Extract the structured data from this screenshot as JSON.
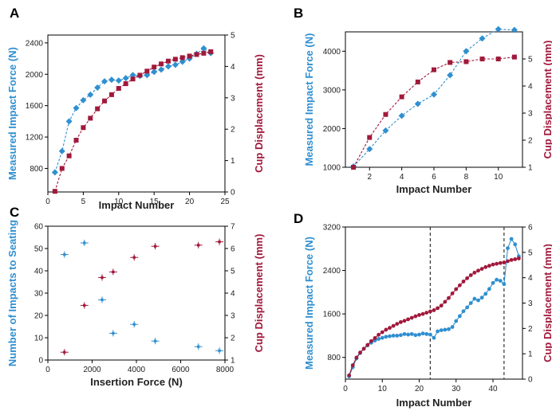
{
  "colors": {
    "blue": "#2f8fd0",
    "red": "#a0193b",
    "axis": "#000000"
  },
  "chart_data": [
    {
      "panel": "A",
      "type": "line",
      "xlabel": "Impact Number",
      "ylabel_left": "Measured Impact Force (N)",
      "ylabel_right": "Cup Displacement (mm)",
      "xlim": [
        0,
        25
      ],
      "ylim_left": [
        500,
        2500
      ],
      "ylim_right": [
        0,
        5
      ],
      "xticks": [
        0,
        5,
        10,
        15,
        20,
        25
      ],
      "yticks_left": [
        800,
        1200,
        1600,
        2000,
        2400
      ],
      "yticks_right": [
        0,
        1,
        2,
        3,
        4,
        5
      ],
      "series": [
        {
          "axis": "left",
          "marker": "diamond",
          "color": "blue",
          "x": [
            1,
            2,
            3,
            4,
            5,
            6,
            7,
            8,
            9,
            10,
            11,
            12,
            13,
            14,
            15,
            16,
            17,
            18,
            19,
            20,
            21,
            22,
            23
          ],
          "values": [
            750,
            1020,
            1400,
            1570,
            1670,
            1740,
            1830,
            1910,
            1930,
            1920,
            1950,
            1990,
            1980,
            1990,
            2030,
            2060,
            2100,
            2120,
            2160,
            2200,
            2260,
            2330,
            2270
          ]
        },
        {
          "axis": "right",
          "marker": "square",
          "color": "red",
          "x": [
            1,
            2,
            3,
            4,
            5,
            6,
            7,
            8,
            9,
            10,
            11,
            12,
            13,
            14,
            15,
            16,
            17,
            18,
            19,
            20,
            21,
            22,
            23
          ],
          "values": [
            0.02,
            0.75,
            1.15,
            1.65,
            2.05,
            2.35,
            2.65,
            2.9,
            3.1,
            3.3,
            3.45,
            3.6,
            3.72,
            3.85,
            3.98,
            4.08,
            4.17,
            4.23,
            4.28,
            4.33,
            4.38,
            4.42,
            4.47
          ]
        }
      ]
    },
    {
      "panel": "B",
      "type": "line",
      "xlabel": "Impact Number",
      "ylabel_left": "Measured Impact Force (N)",
      "ylabel_right": "Cup Displacement (mm)",
      "xlim": [
        0.5,
        11.5
      ],
      "ylim_left": [
        1000,
        4500
      ],
      "ylim_right": [
        1,
        6
      ],
      "xticks": [
        2,
        4,
        6,
        8,
        10
      ],
      "yticks_left": [
        1000,
        2000,
        3000,
        4000
      ],
      "yticks_right": [
        1,
        2,
        3,
        4,
        5
      ],
      "series": [
        {
          "axis": "left",
          "marker": "diamond",
          "color": "blue",
          "x": [
            1,
            2,
            3,
            4,
            5,
            6,
            7,
            8,
            9,
            10,
            11
          ],
          "values": [
            1020,
            1470,
            1950,
            2330,
            2640,
            2880,
            3380,
            4000,
            4330,
            4570,
            4550
          ]
        },
        {
          "axis": "right",
          "marker": "square",
          "color": "red",
          "x": [
            1,
            2,
            3,
            4,
            5,
            6,
            7,
            8,
            9,
            10,
            11
          ],
          "values": [
            1.0,
            2.1,
            2.95,
            3.6,
            4.15,
            4.6,
            4.87,
            4.9,
            5.0,
            5.0,
            5.07
          ]
        }
      ]
    },
    {
      "panel": "C",
      "type": "scatter",
      "xlabel": "Insertion Force (N)",
      "ylabel_left": "Number of Impacts to Seating",
      "ylabel_right": "Cup Displacement (mm)",
      "xlim": [
        0,
        8000
      ],
      "ylim_left": [
        0,
        60
      ],
      "ylim_right": [
        1,
        7
      ],
      "xticks": [
        0,
        2000,
        4000,
        6000,
        8000
      ],
      "yticks_left": [
        0,
        10,
        20,
        30,
        40,
        50,
        60
      ],
      "yticks_right": [
        1,
        2,
        3,
        4,
        5,
        6,
        7
      ],
      "series": [
        {
          "axis": "left",
          "marker": "square",
          "color": "blue",
          "x": [
            750,
            1650,
            2450,
            2950,
            3900,
            4850,
            6800,
            7750
          ],
          "values": [
            47.3,
            52.5,
            27.0,
            12.0,
            16.0,
            8.5,
            6.0,
            4.2
          ]
        },
        {
          "axis": "right",
          "marker": "square",
          "color": "red",
          "x": [
            750,
            1650,
            2450,
            2950,
            3900,
            4850,
            6800,
            7750
          ],
          "values": [
            1.35,
            3.45,
            4.7,
            4.95,
            5.6,
            6.1,
            6.15,
            6.3
          ]
        }
      ]
    },
    {
      "panel": "D",
      "type": "line",
      "xlabel": "Impact Number",
      "ylabel_left": "Measured Impact Force (N)",
      "ylabel_right": "Cup Displacement (mm)",
      "xlim": [
        0,
        48
      ],
      "ylim_left": [
        400,
        3200
      ],
      "ylim_right": [
        0,
        6
      ],
      "xticks": [
        0,
        10,
        20,
        30,
        40
      ],
      "yticks_left": [
        800,
        1600,
        2400,
        3200
      ],
      "yticks_right": [
        0,
        1,
        2,
        3,
        4,
        5,
        6
      ],
      "vlines": [
        23,
        43
      ],
      "series": [
        {
          "axis": "left",
          "marker": "circle",
          "color": "blue",
          "x": [
            1,
            2,
            3,
            4,
            5,
            6,
            7,
            8,
            9,
            10,
            11,
            12,
            13,
            14,
            15,
            16,
            17,
            18,
            19,
            20,
            21,
            22,
            23,
            24,
            25,
            26,
            27,
            28,
            29,
            30,
            31,
            32,
            33,
            34,
            35,
            36,
            37,
            38,
            39,
            40,
            41,
            42,
            43,
            44,
            45,
            46,
            47
          ],
          "values": [
            450,
            620,
            780,
            880,
            960,
            1020,
            1070,
            1110,
            1140,
            1160,
            1180,
            1190,
            1200,
            1200,
            1210,
            1230,
            1220,
            1230,
            1210,
            1220,
            1240,
            1230,
            1220,
            1160,
            1280,
            1300,
            1310,
            1320,
            1360,
            1470,
            1560,
            1650,
            1720,
            1800,
            1880,
            1850,
            1900,
            1970,
            2060,
            2170,
            2230,
            2210,
            2150,
            2810,
            2980,
            2880,
            2660
          ]
        },
        {
          "axis": "right",
          "marker": "circle",
          "color": "red",
          "x": [
            1,
            2,
            3,
            4,
            5,
            6,
            7,
            8,
            9,
            10,
            11,
            12,
            13,
            14,
            15,
            16,
            17,
            18,
            19,
            20,
            21,
            22,
            23,
            24,
            25,
            26,
            27,
            28,
            29,
            30,
            31,
            32,
            33,
            34,
            35,
            36,
            37,
            38,
            39,
            40,
            41,
            42,
            43,
            44,
            45,
            46,
            47
          ],
          "values": [
            0.15,
            0.55,
            0.85,
            1.05,
            1.2,
            1.35,
            1.5,
            1.62,
            1.75,
            1.85,
            1.95,
            2.02,
            2.1,
            2.18,
            2.25,
            2.3,
            2.36,
            2.42,
            2.48,
            2.53,
            2.57,
            2.62,
            2.67,
            2.72,
            2.8,
            2.9,
            3.05,
            3.2,
            3.38,
            3.55,
            3.7,
            3.85,
            3.98,
            4.1,
            4.2,
            4.28,
            4.35,
            4.42,
            4.47,
            4.52,
            4.55,
            4.58,
            4.6,
            4.65,
            4.7,
            4.73,
            4.76
          ]
        }
      ]
    }
  ]
}
